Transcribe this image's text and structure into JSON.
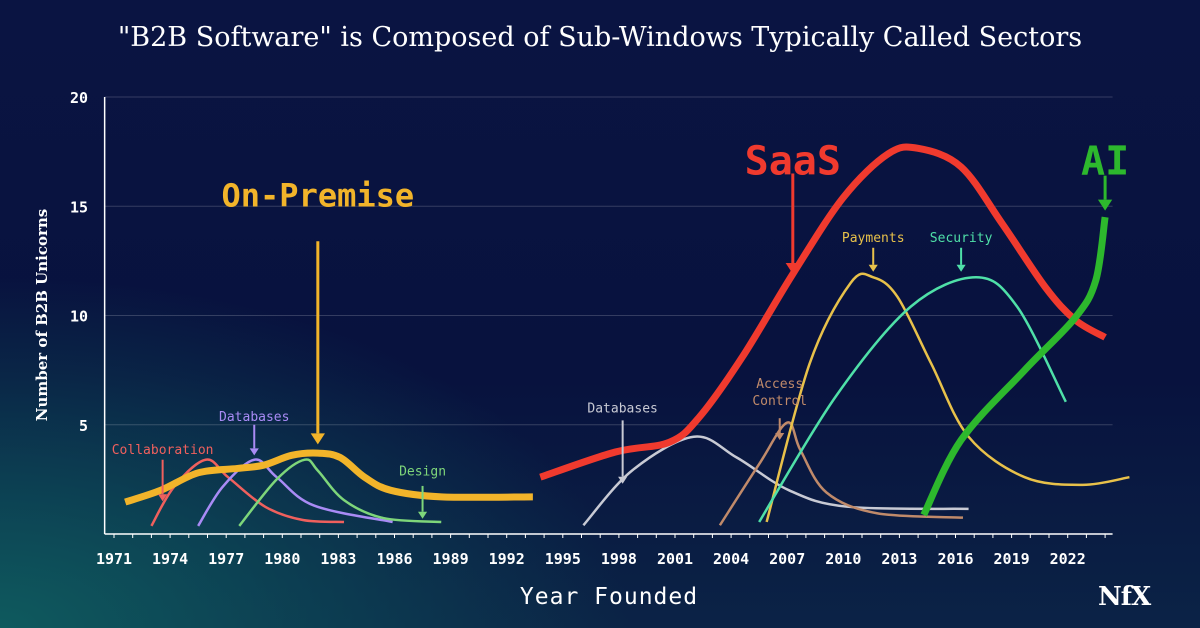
{
  "chart_data": {
    "type": "line",
    "title": "\"B2B Software\" is Composed of Sub-Windows Typically Called Sectors",
    "xlabel": "Year Founded",
    "ylabel": "Number of B2B Unicorns",
    "xlim": [
      1970.5,
      2024.4
    ],
    "ylim": [
      0,
      20
    ],
    "x_ticks": [
      "1971",
      "1974",
      "1977",
      "1980",
      "1983",
      "1986",
      "1989",
      "1992",
      "1995",
      "1998",
      "2001",
      "2004",
      "2007",
      "2010",
      "2013",
      "2016",
      "2019",
      "2022"
    ],
    "y_ticks": [
      "5",
      "10",
      "15",
      "20"
    ],
    "grid": "horizontal",
    "series": [
      {
        "name": "On-Premise",
        "color": "#f2b42a",
        "width": 7,
        "x": [
          1971.6,
          1973.5,
          1975.5,
          1977.6,
          1979,
          1980.5,
          1981.9,
          1983.1,
          1984.4,
          1985.8,
          1988.5,
          1993.4
        ],
        "y": [
          1.46,
          2.0,
          2.8,
          3.0,
          3.15,
          3.6,
          3.7,
          3.5,
          2.6,
          2.0,
          1.7,
          1.7
        ]
      },
      {
        "name": "Collaboration",
        "color": "#f0605d",
        "width": 2.5,
        "x": [
          1973,
          1974.2,
          1975.9,
          1977.1,
          1979.1,
          1981.1,
          1983.3
        ],
        "y": [
          0.37,
          2.15,
          3.4,
          2.6,
          1.24,
          0.64,
          0.55
        ]
      },
      {
        "name": "Databases",
        "color": "#a98bf5",
        "width": 2.5,
        "x": [
          1975.5,
          1976.8,
          1978.5,
          1979.7,
          1981.7,
          1985.9
        ],
        "y": [
          0.37,
          2.15,
          3.4,
          2.6,
          1.3,
          0.55
        ]
      },
      {
        "name": "Design",
        "color": "#7ed67a",
        "width": 2.5,
        "x": [
          1977.7,
          1979.7,
          1981.2,
          1981.9,
          1983.3,
          1985.4,
          1988.5
        ],
        "y": [
          0.37,
          2.5,
          3.4,
          2.9,
          1.55,
          0.73,
          0.55
        ]
      },
      {
        "name": "Databases",
        "color": "#c8cad4",
        "width": 2.5,
        "x": [
          1996.1,
          1998.7,
          2002,
          2004.3,
          2007.1,
          2010.2,
          2016.7
        ],
        "y": [
          0.4,
          2.9,
          4.45,
          3.5,
          2.0,
          1.25,
          1.15
        ]
      },
      {
        "name": "Access Control",
        "color": "#c08a6a",
        "width": 2.5,
        "x": [
          2003.4,
          2005.5,
          2007,
          2007.7,
          2009.1,
          2011.8,
          2016.4
        ],
        "y": [
          0.4,
          3.2,
          5.1,
          3.85,
          1.9,
          0.95,
          0.75
        ]
      },
      {
        "name": "Payments",
        "color": "#e8c14a",
        "width": 2.5,
        "x": [
          2005.9,
          2008.2,
          2010.4,
          2011.6,
          2012.9,
          2014.7,
          2016.7,
          2019.7,
          2022.8,
          2025.3
        ],
        "y": [
          0.55,
          7.8,
          11.5,
          11.75,
          10.85,
          7.8,
          4.45,
          2.6,
          2.25,
          2.6
        ]
      },
      {
        "name": "Security",
        "color": "#4fe0a8",
        "width": 2.5,
        "x": [
          2005.5,
          2009.6,
          2013.6,
          2017.1,
          2019.3,
          2021.9
        ],
        "y": [
          0.55,
          6.3,
          10.4,
          11.75,
          10.4,
          6.05
        ]
      },
      {
        "name": "SaaS",
        "color": "#f03a2e",
        "width": 7,
        "x": [
          1993.8,
          1997.8,
          2000.7,
          2002.3,
          2004.6,
          2007.3,
          2010,
          2012.4,
          2014,
          2016.3,
          2018.5,
          2020.8,
          2022.4,
          2024.0
        ],
        "y": [
          2.6,
          3.75,
          4.2,
          5.35,
          8.1,
          11.9,
          15.4,
          17.4,
          17.65,
          16.8,
          14.2,
          11.3,
          9.8,
          9.0
        ]
      },
      {
        "name": "AI",
        "color": "#2db82d",
        "width": 7,
        "x": [
          2014.3,
          2016.3,
          2019.7,
          2022.4,
          2023.5,
          2024.0
        ],
        "y": [
          0.87,
          4.3,
          7.5,
          9.9,
          11.6,
          14.5
        ]
      }
    ],
    "annotations": [
      {
        "text": "On-Premise",
        "color": "#f2b42a",
        "size": 32,
        "x": 1981.9,
        "label_y": 15.5,
        "arrow_from": 13.4,
        "arrow_to": 4.1,
        "lines": [
          "On-Premise"
        ]
      },
      {
        "text": "Collaboration",
        "color": "#f0605d",
        "size": 13,
        "x": 1973.6,
        "label_y": 3.9,
        "arrow_from": 3.4,
        "arrow_to": 1.5,
        "lines": [
          "Collaboration"
        ]
      },
      {
        "text": "Databases",
        "color": "#a98bf5",
        "size": 13,
        "x": 1978.5,
        "label_y": 5.4,
        "arrow_from": 5.0,
        "arrow_to": 3.6,
        "lines": [
          "Databases"
        ]
      },
      {
        "text": "Design",
        "color": "#7ed67a",
        "size": 13,
        "x": 1987.5,
        "label_y": 2.9,
        "arrow_from": 2.2,
        "arrow_to": 0.7,
        "lines": [
          "Design"
        ]
      },
      {
        "text": "SaaS",
        "color": "#f03a2e",
        "size": 40,
        "x": 2007.3,
        "label_y": 17.1,
        "arrow_from": 16.5,
        "arrow_to": 11.9,
        "lines": [
          "SaaS"
        ]
      },
      {
        "text": "AI",
        "color": "#2db82d",
        "size": 40,
        "x": 2024.0,
        "label_y": 17.1,
        "arrow_from": 16.4,
        "arrow_to": 14.8,
        "lines": [
          "AI"
        ]
      },
      {
        "text": "Payments",
        "color": "#e8c14a",
        "size": 13,
        "x": 2011.6,
        "label_y": 13.6,
        "arrow_from": 13.1,
        "arrow_to": 12.0,
        "lines": [
          "Payments"
        ]
      },
      {
        "text": "Security",
        "color": "#4fe0a8",
        "size": 13,
        "x": 2016.3,
        "label_y": 13.6,
        "arrow_from": 13.1,
        "arrow_to": 12.0,
        "lines": [
          "Security"
        ]
      },
      {
        "text": "Access Control",
        "color": "#c08a6a",
        "size": 13,
        "x": 2006.6,
        "label_y": 6.9,
        "arrow_from": 5.3,
        "arrow_to": 4.3,
        "lines": [
          "Access",
          "Control"
        ]
      },
      {
        "text": "Databases",
        "color": "#c8cad4",
        "size": 13,
        "x": 1998.2,
        "label_y": 5.8,
        "arrow_from": 5.2,
        "arrow_to": 2.3,
        "lines": [
          "Databases"
        ]
      }
    ]
  },
  "logo": "NfX"
}
